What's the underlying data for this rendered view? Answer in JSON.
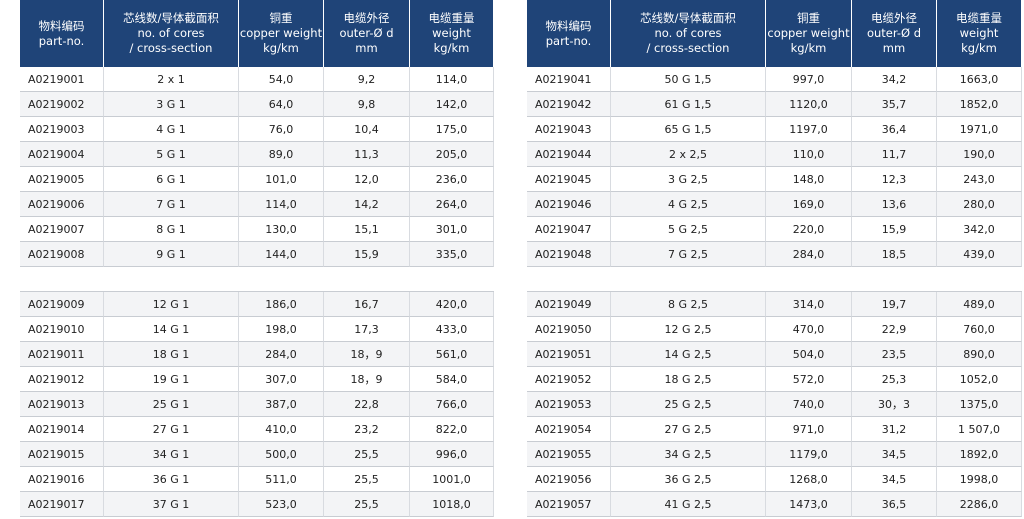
{
  "tables": [
    {
      "header": [
        [
          "物料编码",
          "part-no."
        ],
        [
          "芯线数/导体截面积",
          "no. of cores",
          "/ cross-section"
        ],
        [
          "铜重",
          "copper weight",
          "kg/km"
        ],
        [
          "电缆外径",
          "outer-Ø d",
          "mm"
        ],
        [
          "电缆重量",
          "weight",
          "kg/km"
        ]
      ],
      "rows": [
        [
          "A0219001",
          "2 x 1",
          "54,0",
          "9,2",
          "114,0"
        ],
        [
          "A0219002",
          "3 G 1",
          "64,0",
          "9,8",
          "142,0"
        ],
        [
          "A0219003",
          "4 G 1",
          "76,0",
          "10,4",
          "175,0"
        ],
        [
          "A0219004",
          "5 G 1",
          "89,0",
          "11,3",
          "205,0"
        ],
        [
          "A0219005",
          "6 G 1",
          "101,0",
          "12,0",
          "236,0"
        ],
        [
          "A0219006",
          "7 G 1",
          "114,0",
          "14,2",
          "264,0"
        ],
        [
          "A0219007",
          "8 G 1",
          "130,0",
          "15,1",
          "301,0"
        ],
        [
          "A0219008",
          "9 G 1",
          "144,0",
          "15,9",
          "335,0"
        ],
        [
          "A0219009",
          "12 G 1",
          "186,0",
          "16,7",
          "420,0"
        ],
        [
          "A0219010",
          "14 G 1",
          "198,0",
          "17,3",
          "433,0"
        ],
        [
          "A0219011",
          "18 G 1",
          "284,0",
          "18，9",
          "561,0"
        ],
        [
          "A0219012",
          "19 G 1",
          "307,0",
          "18，9",
          "584,0"
        ],
        [
          "A0219013",
          "25 G 1",
          "387,0",
          "22,8",
          "766,0"
        ],
        [
          "A0219014",
          "27 G 1",
          "410,0",
          "23,2",
          "822,0"
        ],
        [
          "A0219015",
          "34 G 1",
          "500,0",
          "25,5",
          "996,0"
        ],
        [
          "A0219016",
          "36 G 1",
          "511,0",
          "25,5",
          "1001,0"
        ],
        [
          "A0219017",
          "37 G 1",
          "523,0",
          "25,5",
          "1018,0"
        ]
      ]
    },
    {
      "header": [
        [
          "物料编码",
          "part-no."
        ],
        [
          "芯线数/导体截面积",
          "no. of cores",
          "/ cross-section"
        ],
        [
          "铜重",
          "copper weight",
          "kg/km"
        ],
        [
          "电缆外径",
          "outer-Ø d",
          "mm"
        ],
        [
          "电缆重量",
          "weight",
          "kg/km"
        ]
      ],
      "rows": [
        [
          "A0219041",
          "50 G 1,5",
          "997,0",
          "34,2",
          "1663,0"
        ],
        [
          "A0219042",
          "61 G 1,5",
          "1120,0",
          "35,7",
          "1852,0"
        ],
        [
          "A0219043",
          "65 G 1,5",
          "1197,0",
          "36,4",
          "1971,0"
        ],
        [
          "A0219044",
          "2 x 2,5",
          "110,0",
          "11,7",
          "190,0"
        ],
        [
          "A0219045",
          "3 G 2,5",
          "148,0",
          "12,3",
          "243,0"
        ],
        [
          "A0219046",
          "4 G 2,5",
          "169,0",
          "13,6",
          "280,0"
        ],
        [
          "A0219047",
          "5 G 2,5",
          "220,0",
          "15,9",
          "342,0"
        ],
        [
          "A0219048",
          "7 G 2,5",
          "284,0",
          "18,5",
          "439,0"
        ],
        [
          "A0219049",
          "8 G 2,5",
          "314,0",
          "19,7",
          "489,0"
        ],
        [
          "A0219050",
          "12 G 2,5",
          "470,0",
          "22,9",
          "760,0"
        ],
        [
          "A0219051",
          "14 G 2,5",
          "504,0",
          "23,5",
          "890,0"
        ],
        [
          "A0219052",
          "18 G 2,5",
          "572,0",
          "25,3",
          "1052,0"
        ],
        [
          "A0219053",
          "25 G 2,5",
          "740,0",
          "30，3",
          "1375,0"
        ],
        [
          "A0219054",
          "27 G 2,5",
          "971,0",
          "31,2",
          "1 507,0"
        ],
        [
          "A0219055",
          "34 G 2,5",
          "1179,0",
          "34,5",
          "1892,0"
        ],
        [
          "A0219056",
          "36 G 2,5",
          "1268,0",
          "34,5",
          "1998,0"
        ],
        [
          "A0219057",
          "41 G 2,5",
          "1473,0",
          "36,5",
          "2286,0"
        ]
      ]
    }
  ]
}
